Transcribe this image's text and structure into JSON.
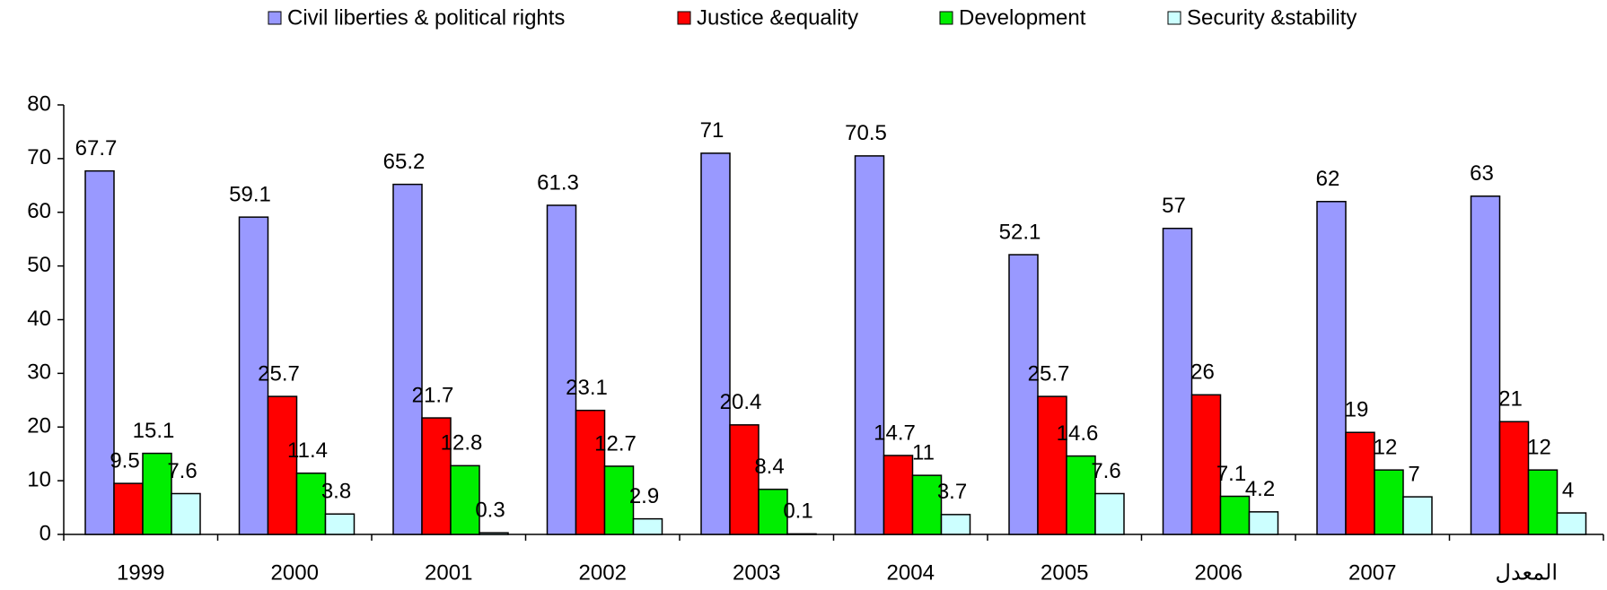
{
  "chart_data": {
    "type": "bar",
    "categories": [
      "1999",
      "2000",
      "2001",
      "2002",
      "2003",
      "2004",
      "2005",
      "2006",
      "2007",
      "المعدل"
    ],
    "series": [
      {
        "name": "Civil liberties & political rights",
        "color": "#9999ff",
        "values": [
          67.7,
          59.1,
          65.2,
          61.3,
          71,
          70.5,
          52.1,
          57,
          62,
          63
        ]
      },
      {
        "name": "Justice &equality",
        "color": "#ff0000",
        "values": [
          9.5,
          25.7,
          21.7,
          23.1,
          20.4,
          14.7,
          25.7,
          26,
          19,
          21
        ]
      },
      {
        "name": "Development",
        "color": "#00ee00",
        "values": [
          15.1,
          11.4,
          12.8,
          12.7,
          8.4,
          11,
          14.6,
          7.1,
          12,
          12
        ]
      },
      {
        "name": "Security &stability",
        "color": "#ccffff",
        "values": [
          7.6,
          3.8,
          0.3,
          2.9,
          0.1,
          3.7,
          7.6,
          4.2,
          7,
          4
        ]
      }
    ],
    "ylim": [
      0,
      80
    ],
    "yticks": [
      0,
      10,
      20,
      30,
      40,
      50,
      60,
      70,
      80
    ],
    "legend": "top",
    "grid": false
  }
}
